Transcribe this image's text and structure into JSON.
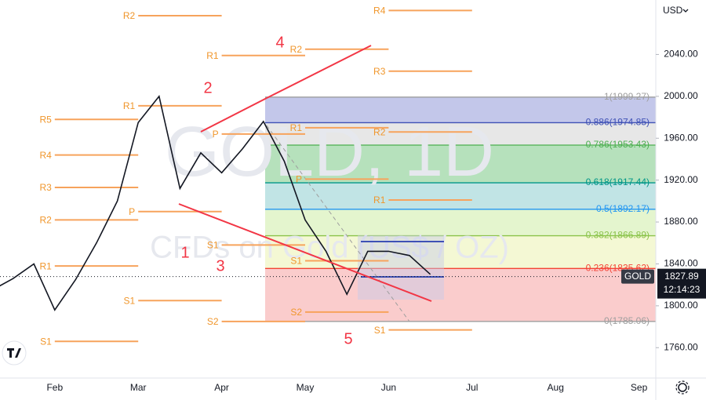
{
  "chart_data": {
    "type": "line",
    "watermark": "GOLD, 1D",
    "watermark_subtitle": "CFDs on Gold (US$ / OZ)",
    "currency": "USD",
    "symbol": "GOLD",
    "last_price": 1827.89,
    "countdown": "12:14:23",
    "color": "#131722",
    "categories": [
      null,
      null,
      null,
      "Feb",
      null,
      null,
      null,
      "Mar",
      null,
      null,
      null,
      "Apr",
      null,
      null,
      null,
      "May",
      null,
      null,
      null,
      "Jun",
      null,
      null,
      null,
      "Jul",
      null,
      null,
      null,
      "Aug",
      null,
      null,
      null,
      "Sep"
    ],
    "values": [
      1815,
      1826,
      1840,
      1796,
      1825,
      1860,
      1900,
      1975,
      2000,
      1912,
      1946,
      1927,
      1950,
      1976,
      1938,
      1882,
      1852,
      1811,
      1852,
      1852,
      1848,
      1830,
      null,
      null,
      null,
      null,
      null,
      null,
      null,
      null,
      null,
      null
    ],
    "ylim": [
      1731,
      2092
    ],
    "yticks": [
      {
        "value": 1760,
        "label": "1760.00"
      },
      {
        "value": 1800,
        "label": "1800.00"
      },
      {
        "value": 1840,
        "label": "1840.00"
      },
      {
        "value": 1880,
        "label": "1880.00"
      },
      {
        "value": 1920,
        "label": "1920.00"
      },
      {
        "value": 1960,
        "label": "1960.00"
      },
      {
        "value": 2000,
        "label": "2000.00"
      },
      {
        "value": 2040,
        "label": "2040.00"
      }
    ],
    "grid": false,
    "fib": [
      {
        "label": "1(1999.27)",
        "value": 1999.27,
        "color": "#9e9e9e"
      },
      {
        "label": "0.886(1974.85)",
        "value": 1974.85,
        "color": "#3f51b5"
      },
      {
        "label": "0.786(1953.43)",
        "value": 1953.43,
        "color": "#4caf50"
      },
      {
        "label": "0.618(1917.44)",
        "value": 1917.44,
        "color": "#009688"
      },
      {
        "label": "0.5(1892.17)",
        "value": 1892.17,
        "color": "#2196f3"
      },
      {
        "label": "0.382(1866.89)",
        "value": 1866.89,
        "color": "#8bc34a"
      },
      {
        "label": "0.236(1835.62)",
        "value": 1835.62,
        "color": "#f44336"
      },
      {
        "label": "0(1785.06)",
        "value": 1785.06,
        "color": "#9e9e9e"
      }
    ],
    "fib_bands": [
      "#b9bde6",
      "#e3e3e3",
      "#a9dcb0",
      "#b6dfe0",
      "#dff3c6",
      "#f2f7cd",
      "#f9c3c3"
    ],
    "pivots": [
      [
        {
          "label": "R5",
          "value": 1978
        },
        {
          "label": "R4",
          "value": 1944
        },
        {
          "label": "R3",
          "value": 1913
        },
        {
          "label": "R2",
          "value": 1882
        },
        {
          "label": "R1",
          "value": 1838
        },
        {
          "label": "S1",
          "value": 1766
        }
      ],
      [
        {
          "label": "R2",
          "value": 2077
        },
        {
          "label": "R1",
          "value": 1991
        },
        {
          "label": "P",
          "value": 1890
        },
        {
          "label": "S1",
          "value": 1805
        }
      ],
      [
        {
          "label": "R1",
          "value": 2039
        },
        {
          "label": "P",
          "value": 1964
        },
        {
          "label": "S1",
          "value": 1858
        },
        {
          "label": "S2",
          "value": 1785
        }
      ],
      [
        {
          "label": "R2",
          "value": 2045
        },
        {
          "label": "R1",
          "value": 1970
        },
        {
          "label": "P",
          "value": 1921
        },
        {
          "label": "S1",
          "value": 1843
        },
        {
          "label": "S2",
          "value": 1794
        }
      ],
      [
        {
          "label": "R4",
          "value": 2082
        },
        {
          "label": "R3",
          "value": 2024
        },
        {
          "label": "R2",
          "value": 1966
        },
        {
          "label": "R1",
          "value": 1901
        },
        {
          "label": "S1",
          "value": 1777
        }
      ]
    ],
    "annotations": [
      "1",
      "2",
      "3",
      "4",
      "5"
    ]
  }
}
